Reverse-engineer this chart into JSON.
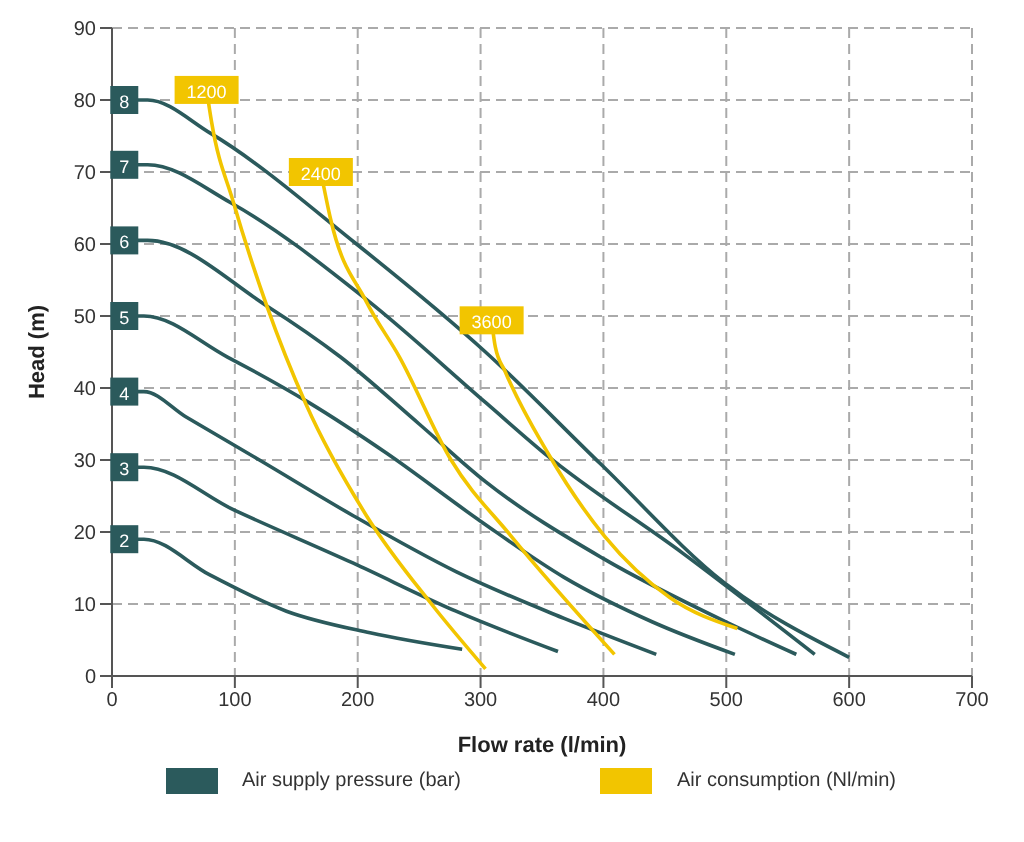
{
  "chart_data": {
    "type": "line",
    "xlabel": "Flow rate (l/min)",
    "ylabel": "Head (m)",
    "xlim": [
      0,
      700
    ],
    "ylim": [
      0,
      90
    ],
    "xticks": [
      0,
      100,
      200,
      300,
      400,
      500,
      600,
      700
    ],
    "yticks": [
      0,
      10,
      20,
      30,
      40,
      50,
      60,
      70,
      80,
      90
    ],
    "grid": true,
    "marker": "none",
    "line_style": "solid",
    "annotations": [
      "Air supply pressure (bar)",
      "Air consumption (Nl/min)",
      {
        "text": "8",
        "x": 10,
        "y": 80
      },
      {
        "text": "7",
        "x": 10,
        "y": 71
      },
      {
        "text": "6",
        "x": 10,
        "y": 60.5
      },
      {
        "text": "5",
        "x": 10,
        "y": 50
      },
      {
        "text": "4",
        "x": 10,
        "y": 39.5
      },
      {
        "text": "3",
        "x": 10,
        "y": 29
      },
      {
        "text": "2",
        "x": 10,
        "y": 19
      },
      {
        "text": "1200",
        "x": 77,
        "y": 81.4
      },
      {
        "text": "2400",
        "x": 170,
        "y": 70
      },
      {
        "text": "3600",
        "x": 309,
        "y": 49.4
      }
    ],
    "series": [
      {
        "color": "#2b5a5c",
        "x": [
          10,
          29,
          80,
          199,
          304,
          398,
          498,
          600
        ],
        "values": [
          80,
          80,
          75.4,
          60,
          45,
          29.4,
          13,
          2.6
        ]
      },
      {
        "color": "#2b5a5c",
        "x": [
          10,
          29,
          97,
          207,
          304,
          355,
          465,
          572
        ],
        "values": [
          71,
          71,
          65.7,
          52.3,
          38,
          30.5,
          17,
          3
        ]
      },
      {
        "color": "#2b5a5c",
        "x": [
          10,
          29,
          126,
          186,
          250,
          304,
          400,
          500,
          557
        ],
        "values": [
          60.5,
          60.5,
          51.4,
          44.3,
          35,
          27,
          16.3,
          7.5,
          3
        ]
      },
      {
        "color": "#2b5a5c",
        "x": [
          10,
          26,
          94,
          160,
          223,
          300,
          368,
          440,
          507
        ],
        "values": [
          50,
          50,
          44.3,
          38,
          31,
          21.5,
          13.7,
          7.5,
          3
        ]
      },
      {
        "color": "#2b5a5c",
        "x": [
          10,
          26,
          60,
          120,
          196,
          280,
          368,
          443
        ],
        "values": [
          39.5,
          39.5,
          36,
          30,
          22.3,
          14.5,
          8,
          3
        ]
      },
      {
        "color": "#2b5a5c",
        "x": [
          10,
          26,
          100,
          196,
          280,
          363
        ],
        "values": [
          29,
          29,
          23,
          15.7,
          9,
          3.4
        ]
      },
      {
        "color": "#2b5a5c",
        "x": [
          10,
          26,
          80,
          142,
          210,
          285
        ],
        "values": [
          19,
          19,
          14,
          9,
          6,
          3.7
        ]
      },
      {
        "color": "#f2c500",
        "x": [
          77,
          81,
          99,
          126,
          158,
          207,
          260,
          304
        ],
        "values": [
          81.4,
          77,
          65.7,
          51.4,
          37.7,
          22.3,
          10,
          1
        ]
      },
      {
        "color": "#f2c500",
        "x": [
          170,
          178,
          207,
          234,
          276,
          325,
          409
        ],
        "values": [
          70,
          63.4,
          52,
          44.3,
          30,
          19.4,
          3
        ]
      },
      {
        "color": "#f2c500",
        "x": [
          309,
          312,
          320,
          355,
          401,
          454,
          509
        ],
        "values": [
          49.4,
          45.7,
          42.3,
          30.9,
          19.4,
          10.9,
          6.6
        ]
      }
    ]
  }
}
